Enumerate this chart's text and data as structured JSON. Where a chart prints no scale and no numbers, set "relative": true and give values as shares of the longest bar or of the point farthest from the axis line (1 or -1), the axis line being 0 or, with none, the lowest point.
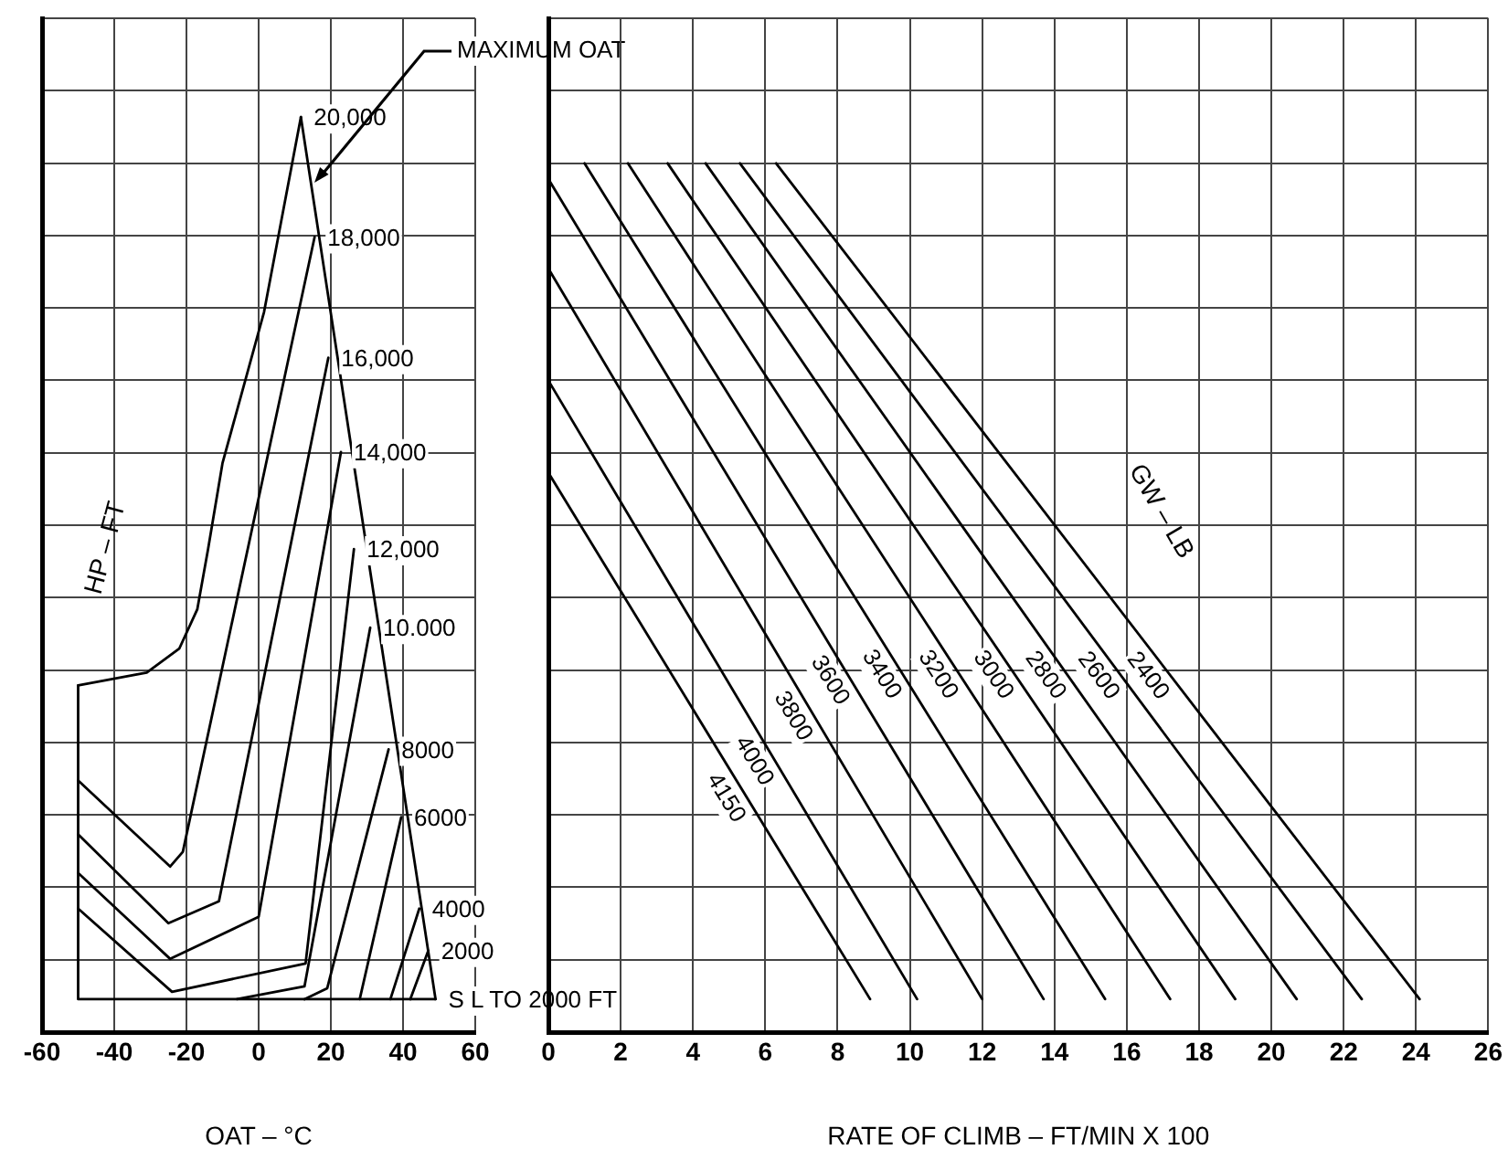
{
  "chart_data": [
    {
      "type": "line",
      "xlabel": "OAT – °C",
      "legend_title": "HP – FT",
      "relative": true,
      "xlim": [
        -60,
        60
      ],
      "xticks": [
        -60,
        -40,
        -20,
        0,
        20,
        40,
        60
      ],
      "grid": true,
      "legend": false,
      "marker": "none",
      "line_style": "solid",
      "annotations": [
        "MAXIMUM OAT"
      ],
      "series": [
        {
          "name": "20,000",
          "color": "#000000",
          "x": [
            -50,
            -31,
            -22,
            -17,
            -14,
            -10,
            1.5,
            11.7
          ],
          "values": [
            0.379,
            0.393,
            0.419,
            0.462,
            0.528,
            0.622,
            0.787,
            1
          ]
        },
        {
          "name": "18,000",
          "color": "#000000",
          "x": [
            -50,
            -24.5,
            -21,
            15.5
          ],
          "values": [
            0.275,
            0.181,
            0.197,
            0.869
          ]
        },
        {
          "name": "16,000",
          "color": "#000000",
          "x": [
            -50,
            -25,
            -11,
            19.3
          ],
          "values": [
            0.216,
            0.119,
            0.143,
            0.737
          ]
        },
        {
          "name": "14,000",
          "color": "#000000",
          "x": [
            -50,
            -24.5,
            0,
            22.8
          ],
          "values": [
            0.174,
            0.08,
            0.126,
            0.634
          ]
        },
        {
          "name": "12,000",
          "color": "#000000",
          "x": [
            -50,
            -24,
            13,
            26.4
          ],
          "values": [
            0.135,
            0.044,
            0.075,
            0.528
          ]
        },
        {
          "name": "10.000",
          "color": "#000000",
          "x": [
            -6,
            12.7,
            30.9
          ],
          "values": [
            0.036,
            0.05,
            0.442
          ]
        },
        {
          "name": "8000",
          "color": "#000000",
          "x": [
            12.7,
            19,
            36
          ],
          "values": [
            0.036,
            0.048,
            0.309
          ]
        },
        {
          "name": "6000",
          "color": "#000000",
          "x": [
            28,
            39.5
          ],
          "values": [
            0.036,
            0.235
          ]
        },
        {
          "name": "4000",
          "color": "#000000",
          "x": [
            36.5,
            44.5
          ],
          "values": [
            0.036,
            0.135
          ]
        },
        {
          "name": "2000",
          "color": "#000000",
          "x": [
            42,
            47
          ],
          "values": [
            0.036,
            0.089
          ]
        },
        {
          "name": "S L TO 2000 FT",
          "color": "#000000",
          "x": [
            -50,
            -50,
            49
          ],
          "values": [
            0.379,
            0.036,
            0.036
          ]
        },
        {
          "color": "#000000",
          "x": [
            49,
            11.7
          ],
          "values": [
            0.036,
            1
          ]
        }
      ]
    },
    {
      "type": "line",
      "xlabel": "RATE OF CLIMB – FT/MIN X 100",
      "legend_title": "GW – LB",
      "relative": true,
      "xlim": [
        0,
        26
      ],
      "xticks": [
        0,
        2,
        4,
        6,
        8,
        10,
        12,
        14,
        16,
        18,
        20,
        22,
        24,
        26
      ],
      "grid": true,
      "legend": false,
      "marker": "none",
      "line_style": "solid",
      "series": [
        {
          "name": "2400",
          "color": "#000000",
          "x": [
            6.3,
            24.1
          ],
          "values": [
            1,
            0.038
          ]
        },
        {
          "name": "2600",
          "color": "#000000",
          "x": [
            5.3,
            22.5
          ],
          "values": [
            1,
            0.038
          ]
        },
        {
          "name": "2800",
          "color": "#000000",
          "x": [
            4.35,
            20.7
          ],
          "values": [
            1,
            0.038
          ]
        },
        {
          "name": "3000",
          "color": "#000000",
          "x": [
            3.3,
            19.0
          ],
          "values": [
            1,
            0.038
          ]
        },
        {
          "name": "3200",
          "color": "#000000",
          "x": [
            2.2,
            17.2
          ],
          "values": [
            1,
            0.038
          ]
        },
        {
          "name": "3400",
          "color": "#000000",
          "x": [
            1.0,
            15.4
          ],
          "values": [
            1,
            0.038
          ]
        },
        {
          "name": "3600",
          "color": "#000000",
          "x": [
            0,
            13.7
          ],
          "values": [
            0.982,
            0.038
          ]
        },
        {
          "name": "3800",
          "color": "#000000",
          "x": [
            0,
            12.0
          ],
          "values": [
            0.879,
            0.038
          ]
        },
        {
          "name": "4000",
          "color": "#000000",
          "x": [
            0,
            10.2
          ],
          "values": [
            0.75,
            0.038
          ]
        },
        {
          "name": "4150",
          "color": "#000000",
          "x": [
            0,
            8.9
          ],
          "values": [
            0.644,
            0.038
          ]
        }
      ]
    }
  ]
}
